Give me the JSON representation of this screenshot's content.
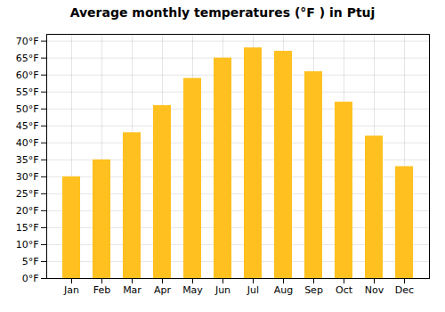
{
  "chart_data": {
    "type": "bar",
    "title": "Average monthly temperatures (°F ) in Ptuj",
    "categories": [
      "Jan",
      "Feb",
      "Mar",
      "Apr",
      "May",
      "Jun",
      "Jul",
      "Aug",
      "Sep",
      "Oct",
      "Nov",
      "Dec"
    ],
    "values": [
      30,
      35,
      43,
      51,
      59,
      65,
      68,
      67,
      61,
      52,
      42,
      33
    ],
    "color": "#FFC020",
    "ylim": [
      0,
      72
    ],
    "yticks": [
      {
        "value": 0,
        "label": "0°F"
      },
      {
        "value": 5,
        "label": "5°F"
      },
      {
        "value": 10,
        "label": "10°F"
      },
      {
        "value": 15,
        "label": "15°F"
      },
      {
        "value": 20,
        "label": "20°F"
      },
      {
        "value": 25,
        "label": "25°F"
      },
      {
        "value": 30,
        "label": "30°F"
      },
      {
        "value": 35,
        "label": "35°F"
      },
      {
        "value": 40,
        "label": "40°F"
      },
      {
        "value": 45,
        "label": "45°F"
      },
      {
        "value": 50,
        "label": "50°F"
      },
      {
        "value": 55,
        "label": "55°F"
      },
      {
        "value": 60,
        "label": "60°F"
      },
      {
        "value": 65,
        "label": "65°F"
      },
      {
        "value": 70,
        "label": "70°F"
      }
    ],
    "grid": true
  }
}
